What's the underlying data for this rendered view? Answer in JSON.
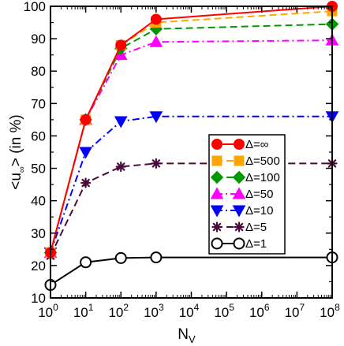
{
  "chart_data": {
    "type": "line",
    "xscale": "log",
    "x": [
      1,
      10,
      100,
      1000,
      100000000
    ],
    "xlim": [
      1,
      100000000
    ],
    "ylim": [
      10,
      100
    ],
    "xticks": [
      1,
      10,
      100,
      1000,
      10000,
      100000,
      1000000,
      10000000,
      100000000
    ],
    "xtick_base": "10",
    "xtick_exponents": [
      "0",
      "1",
      "2",
      "3",
      "4",
      "5",
      "6",
      "7",
      "8"
    ],
    "yticks": [
      "10",
      "20",
      "30",
      "40",
      "50",
      "60",
      "70",
      "80",
      "90",
      "100"
    ],
    "xlabel_main": "N",
    "xlabel_sub": "V",
    "ylabel_prefix": "<u",
    "ylabel_sub": "∞",
    "ylabel_suffix": "> (in %)",
    "grid": false,
    "legend_position": "lower-right",
    "series": [
      {
        "name": "Δ=∞",
        "values": [
          24,
          65,
          88,
          96,
          100
        ],
        "color": "#ff0000",
        "line_color": "#ff0000",
        "marker": "circle",
        "marker_fill": "#ff0000",
        "dash": "solid"
      },
      {
        "name": "Δ=500",
        "values": [
          24,
          65,
          88,
          95,
          98.5
        ],
        "color": "#ffa500",
        "line_color": "#ffa500",
        "marker": "square",
        "marker_fill": "#ffa500",
        "dash": "dash"
      },
      {
        "name": "Δ=100",
        "values": [
          24,
          65,
          87,
          93,
          94.5
        ],
        "color": "#009900",
        "line_color": "#009900",
        "marker": "diamond",
        "marker_fill": "#009900",
        "dash": "dash"
      },
      {
        "name": "Δ=50",
        "values": [
          24,
          65,
          85,
          89,
          89.5
        ],
        "color": "#ff00ff",
        "line_color": "#ff00ff",
        "marker": "triangle-up",
        "marker_fill": "#ff00ff",
        "dash": "dashdot"
      },
      {
        "name": "Δ=10",
        "values": [
          24,
          55,
          64.5,
          66,
          66
        ],
        "color": "#0000ff",
        "line_color": "#0000ff",
        "marker": "triangle-down",
        "marker_fill": "#0000ff",
        "dash": "dashdot"
      },
      {
        "name": "Δ=5",
        "values": [
          23,
          45.5,
          50.5,
          51.5,
          51.5
        ],
        "color": "#4b0a3a",
        "line_color": "#4b0a3a",
        "marker": "star",
        "marker_fill": "#4b0a3a",
        "dash": "dash"
      },
      {
        "name": "Δ=1",
        "values": [
          14,
          21,
          22.3,
          22.5,
          22.5
        ],
        "color": "#000000",
        "line_color": "#000000",
        "marker": "circle-open",
        "marker_fill": "#ffffff",
        "dash": "solid"
      }
    ]
  }
}
